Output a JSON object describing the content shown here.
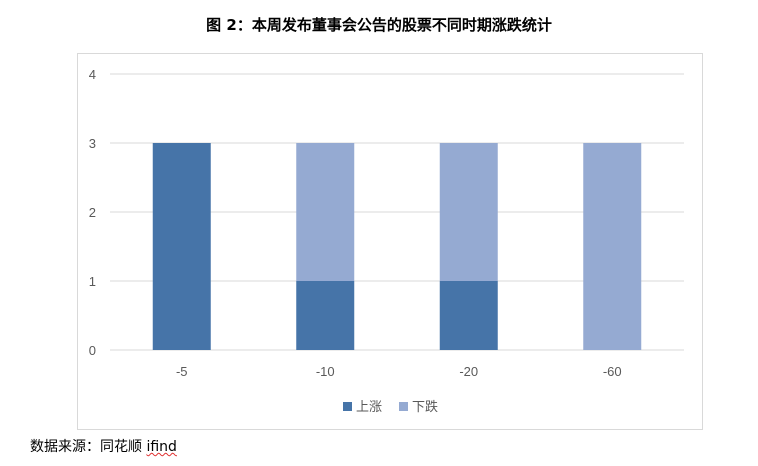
{
  "title": "图 2：本周发布董事会公告的股票不同时期涨跌统计",
  "source": {
    "prefix": "数据来源：同花顺 ",
    "brand": "ifind"
  },
  "chart_data": {
    "type": "bar",
    "stacked": true,
    "categories": [
      "-5",
      "-10",
      "-20",
      "-60"
    ],
    "series": [
      {
        "name": "上涨",
        "color": "#4674a8",
        "values": [
          3,
          1,
          1,
          0
        ]
      },
      {
        "name": "下跌",
        "color": "#95aad2",
        "values": [
          0,
          2,
          2,
          3
        ]
      }
    ],
    "ylim": [
      0,
      4
    ],
    "yticks": [
      "0",
      "1",
      "2",
      "3",
      "4"
    ],
    "grid": true,
    "legend_position": "bottom"
  }
}
